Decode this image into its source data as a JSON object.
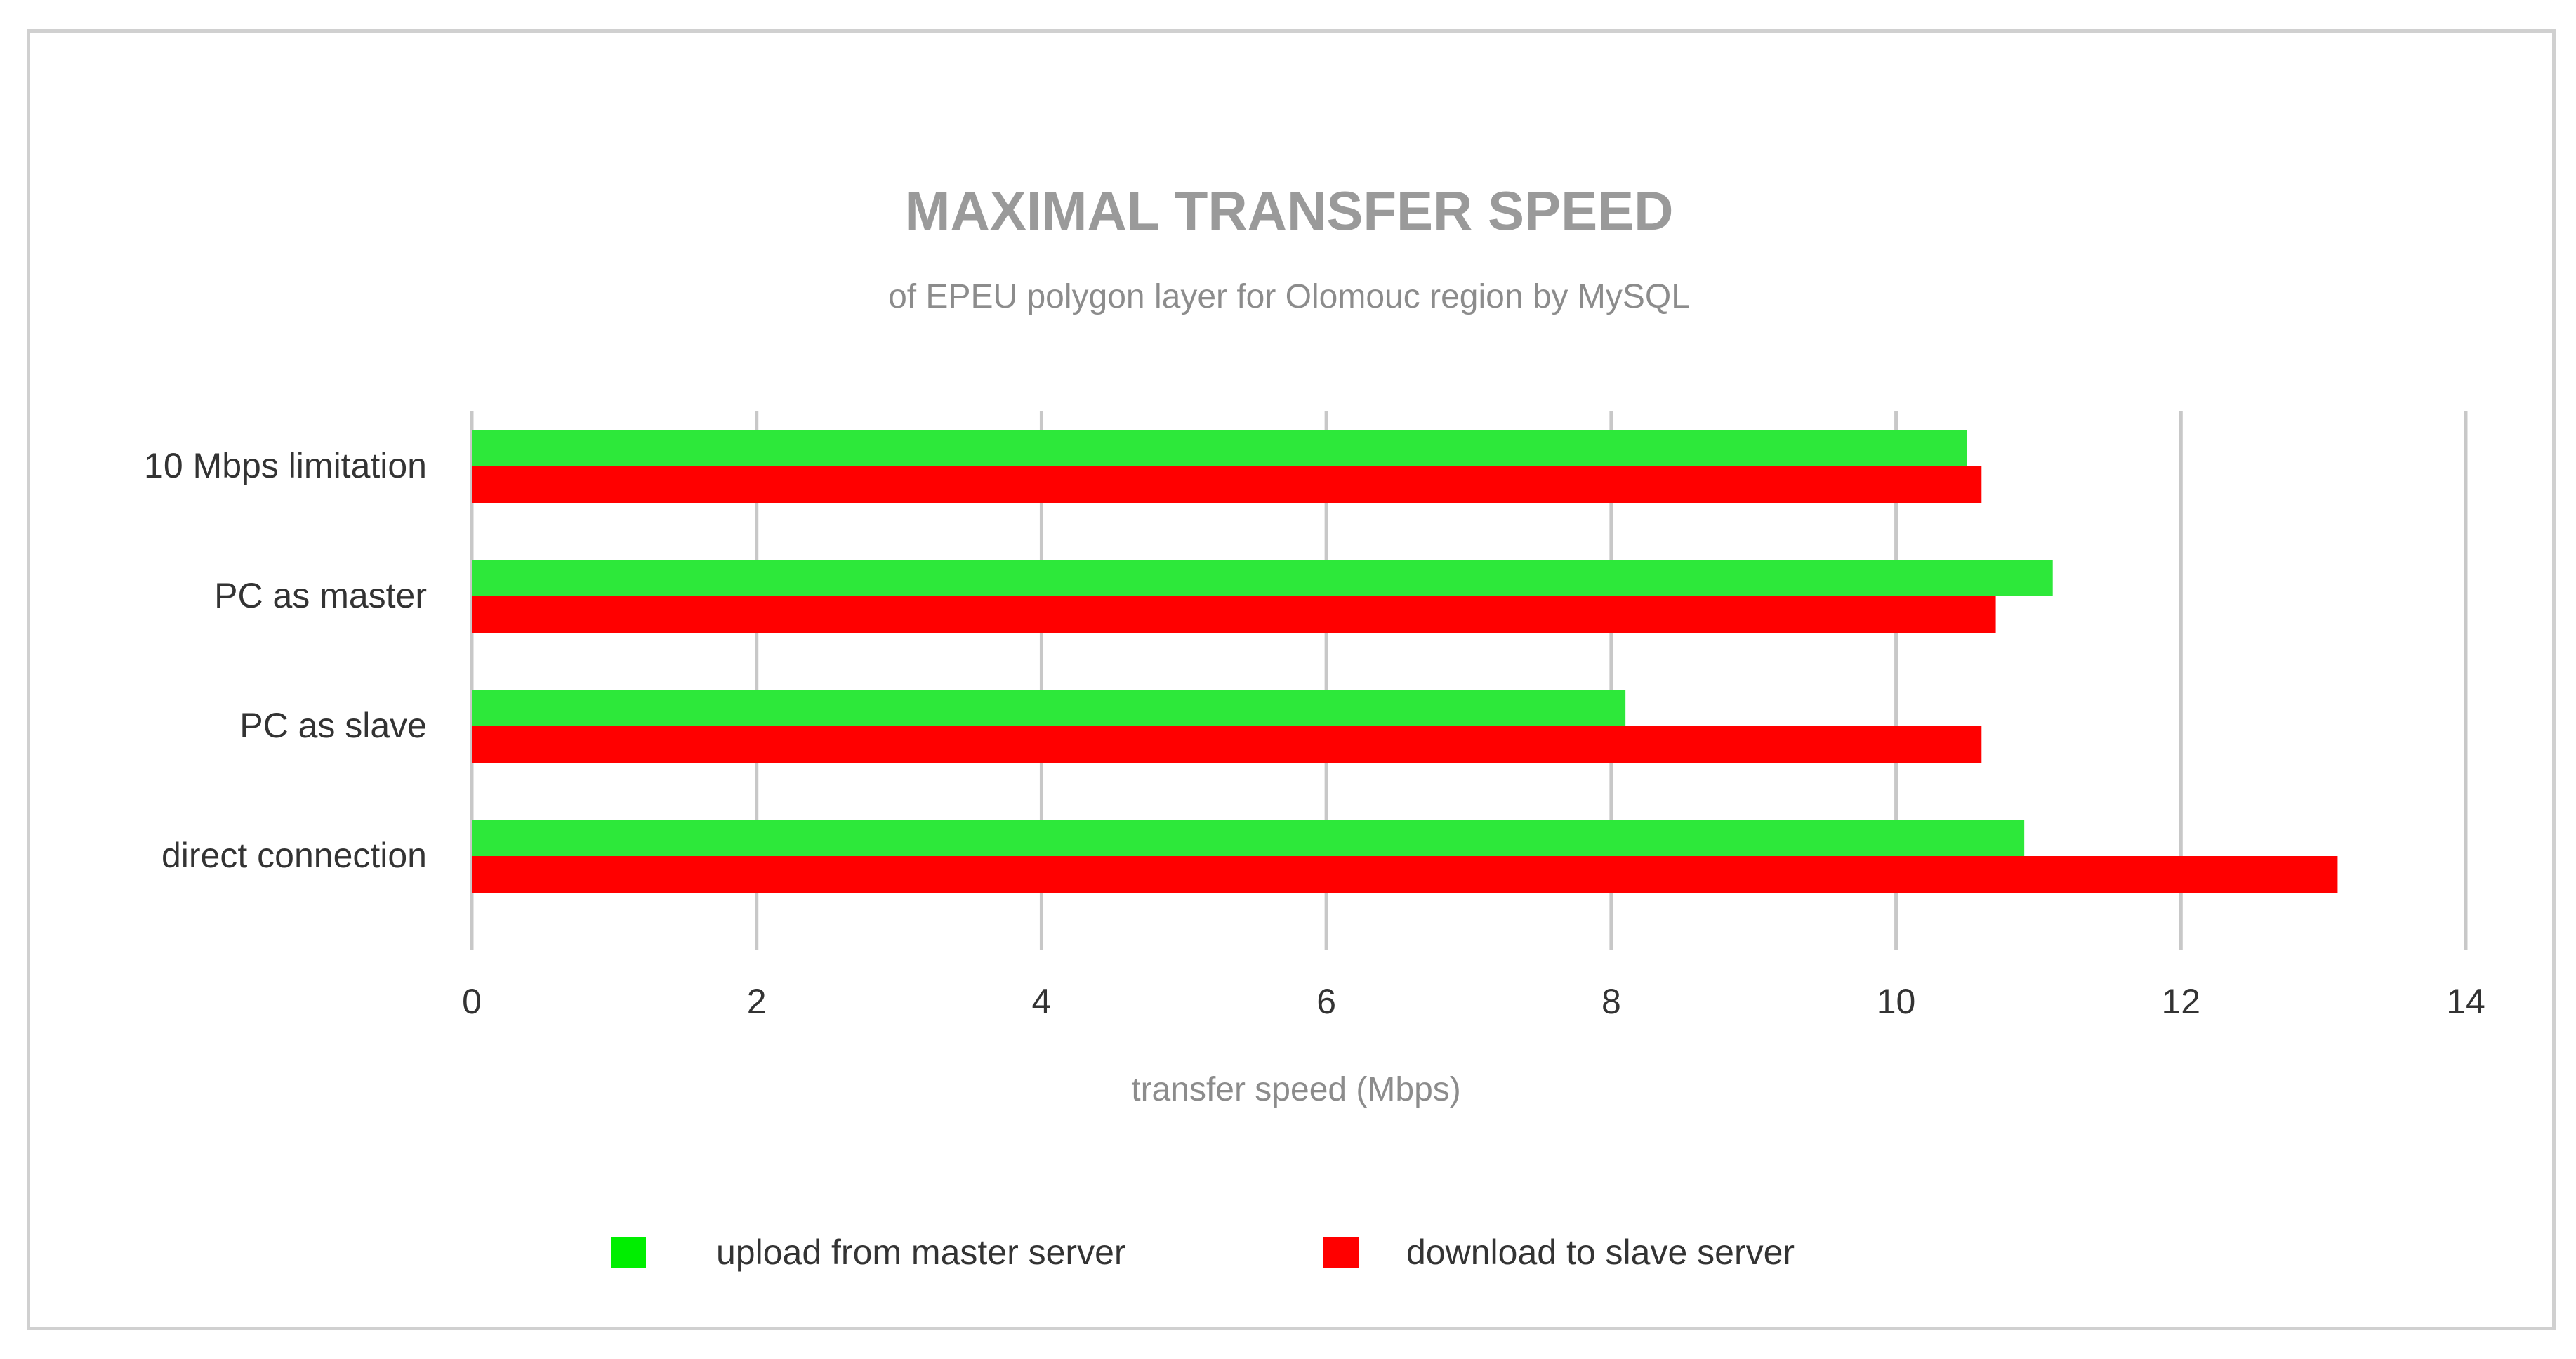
{
  "chart_data": {
    "type": "bar",
    "orientation": "horizontal",
    "title": "MAXIMAL TRANSFER SPEED",
    "subtitle": "of EPEU polygon layer for Olomouc region by MySQL",
    "xlabel": "transfer speed (Mbps)",
    "ylabel": "",
    "xlim": [
      0,
      14
    ],
    "xticks": [
      0,
      2,
      4,
      6,
      8,
      10,
      12,
      14
    ],
    "grid": "vertical",
    "legend_position": "bottom",
    "categories": [
      "10 Mbps limitation",
      "PC as master",
      "PC as slave",
      "direct connection"
    ],
    "series": [
      {
        "name": "upload from master server",
        "color": "#2de83a",
        "values": [
          10.5,
          11.1,
          8.1,
          10.9
        ]
      },
      {
        "name": "download to slave server",
        "color": "#ff0000",
        "values": [
          10.6,
          10.7,
          10.6,
          13.1
        ]
      }
    ],
    "legend_colors": [
      "#00ee00",
      "#ff0000"
    ]
  }
}
